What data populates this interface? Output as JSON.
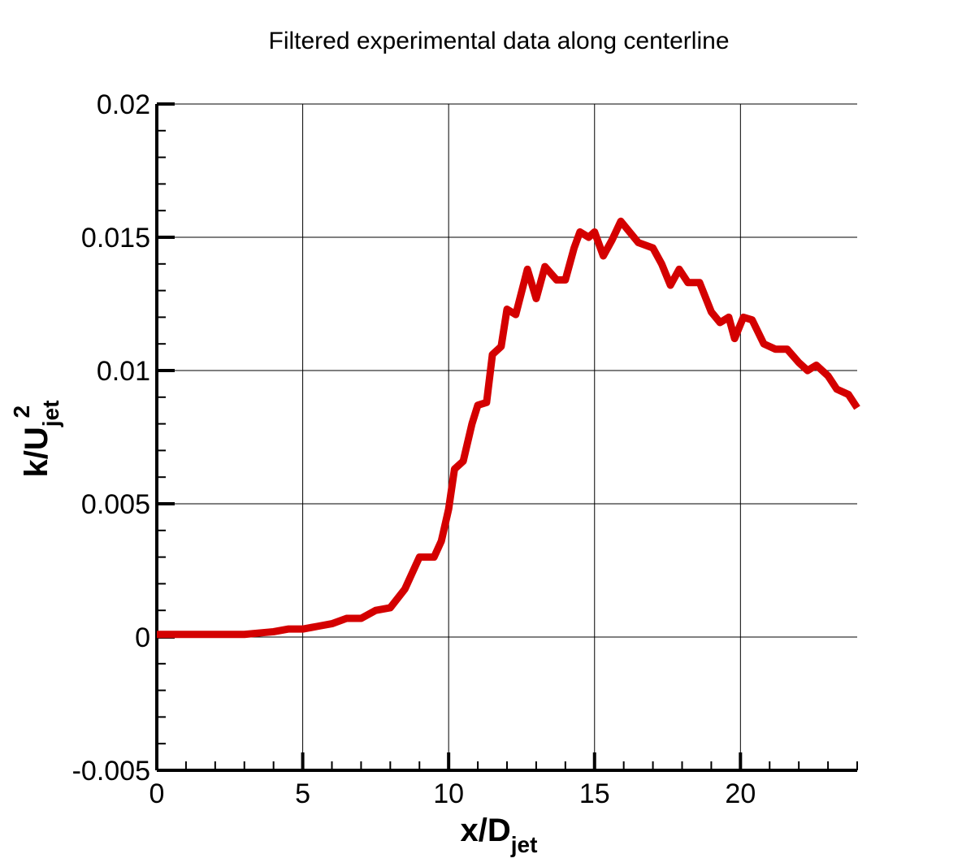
{
  "chart_data": {
    "type": "line",
    "title": "Filtered experimental data along centerline",
    "x_label": {
      "main": "x/D",
      "sub": "jet"
    },
    "y_label": {
      "main": "k/U",
      "sub": "jet",
      "sup": "2"
    },
    "xlim": [
      0,
      24
    ],
    "ylim": [
      -0.005,
      0.02
    ],
    "xticks": [
      0,
      5,
      10,
      15,
      20
    ],
    "yticks": [
      -0.005,
      0,
      0.005,
      0.01,
      0.015,
      0.02
    ],
    "minor_divisions": 5,
    "grid": true,
    "series": [
      {
        "color": "#d40000",
        "x": [
          0,
          1,
          2,
          3,
          3.5,
          4,
          4.5,
          5,
          5.5,
          6,
          6.5,
          7,
          7.5,
          8,
          8.5,
          9,
          9.5,
          9.75,
          10,
          10.2,
          10.5,
          10.8,
          11,
          11.3,
          11.5,
          11.8,
          12,
          12.3,
          12.7,
          13,
          13.3,
          13.7,
          14,
          14.3,
          14.5,
          14.8,
          15,
          15.3,
          15.6,
          15.9,
          16.2,
          16.5,
          17,
          17.3,
          17.6,
          17.9,
          18.2,
          18.6,
          19,
          19.3,
          19.6,
          19.8,
          20.1,
          20.4,
          20.8,
          21.2,
          21.6,
          22,
          22.3,
          22.6,
          23,
          23.3,
          23.7,
          24
        ],
        "values": [
          0.0001,
          0.0001,
          0.0001,
          0.0001,
          0.00015,
          0.0002,
          0.0003,
          0.0003,
          0.0004,
          0.0005,
          0.0007,
          0.0007,
          0.001,
          0.0011,
          0.0018,
          0.003,
          0.003,
          0.0036,
          0.0048,
          0.0063,
          0.0066,
          0.008,
          0.0087,
          0.0088,
          0.0106,
          0.0109,
          0.0123,
          0.0121,
          0.0138,
          0.0127,
          0.0139,
          0.0134,
          0.0134,
          0.0146,
          0.0152,
          0.015,
          0.0152,
          0.0143,
          0.0149,
          0.0156,
          0.0152,
          0.0148,
          0.0146,
          0.014,
          0.0132,
          0.0138,
          0.0133,
          0.0133,
          0.0122,
          0.0118,
          0.012,
          0.0112,
          0.012,
          0.0119,
          0.011,
          0.0108,
          0.0108,
          0.0103,
          0.01,
          0.0102,
          0.0098,
          0.0093,
          0.0091,
          0.0086
        ]
      }
    ]
  }
}
